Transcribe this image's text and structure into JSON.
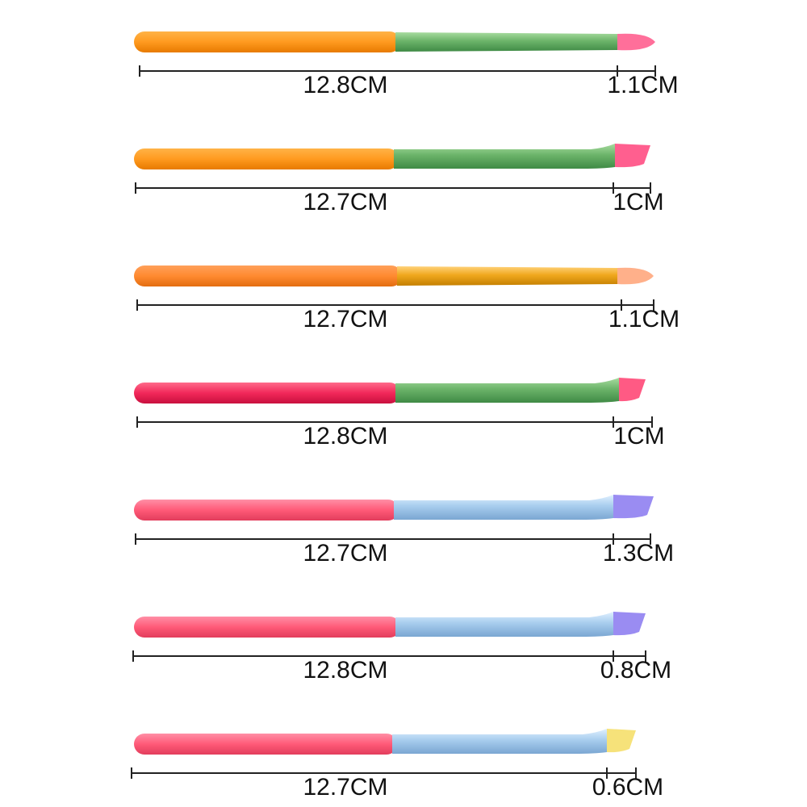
{
  "brushes": [
    {
      "handle_length": "12.8CM",
      "tip_length": "1.1CM"
    },
    {
      "handle_length": "12.7CM",
      "tip_length": "1CM"
    },
    {
      "handle_length": "12.7CM",
      "tip_length": "1.1CM"
    },
    {
      "handle_length": "12.8CM",
      "tip_length": "1CM"
    },
    {
      "handle_length": "12.7CM",
      "tip_length": "1.3CM"
    },
    {
      "handle_length": "12.8CM",
      "tip_length": "0.8CM"
    },
    {
      "handle_length": "12.7CM",
      "tip_length": "0.6CM"
    }
  ]
}
